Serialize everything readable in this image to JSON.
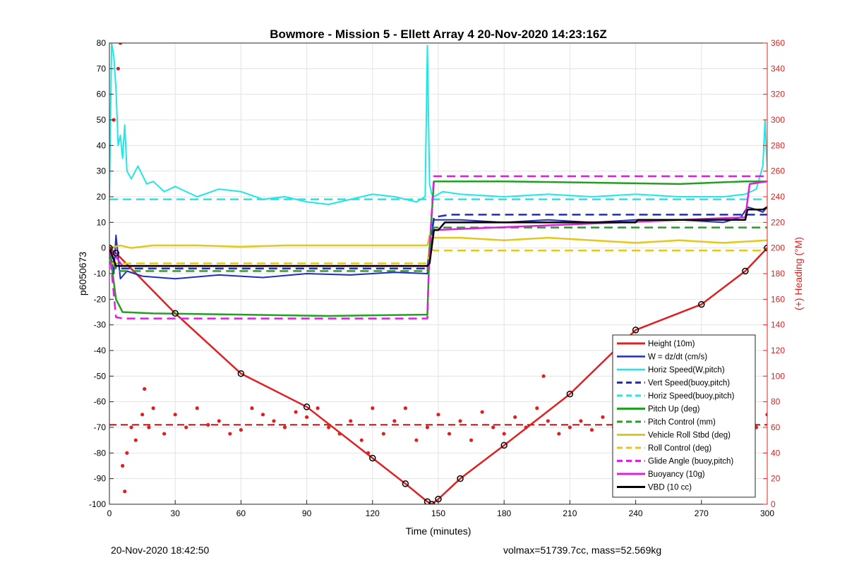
{
  "chart_data": {
    "type": "line",
    "title": "Bowmore - Mission 5 - Ellett Array 4 20-Nov-2020 14:23:16Z",
    "xlabel": "Time (minutes)",
    "ylabel": "p6050673",
    "y2label": "(+) Heading (°M)",
    "xlim": [
      0,
      300
    ],
    "ylim": [
      -100,
      80
    ],
    "y2lim": [
      0,
      360
    ],
    "xticks": [
      0,
      30,
      60,
      90,
      120,
      150,
      180,
      210,
      240,
      270,
      300
    ],
    "yticks": [
      -100,
      -90,
      -80,
      -70,
      -60,
      -50,
      -40,
      -30,
      -20,
      -10,
      0,
      10,
      20,
      30,
      40,
      50,
      60,
      70,
      80
    ],
    "y2ticks": [
      0,
      20,
      40,
      60,
      80,
      100,
      120,
      140,
      160,
      180,
      200,
      220,
      240,
      260,
      280,
      300,
      320,
      340,
      360
    ],
    "grid": true,
    "legend_position": "bottom-right",
    "series": [
      {
        "name": "Height (10m)",
        "color": "#e02020",
        "style": "solid",
        "width": 2.5,
        "x": [
          0,
          3,
          30,
          60,
          90,
          120,
          135,
          145,
          147,
          150,
          160,
          180,
          210,
          240,
          270,
          290,
          300
        ],
        "y": [
          0,
          -2,
          -25.5,
          -49,
          -62,
          -82,
          -92,
          -99,
          -100,
          -98,
          -90,
          -77,
          -57,
          -32,
          -22,
          -9,
          0
        ]
      },
      {
        "name": "W = dz/dt (cm/s)",
        "color": "#1f2fbf",
        "style": "solid",
        "width": 2,
        "x": [
          0,
          2,
          3,
          5,
          8,
          15,
          30,
          50,
          70,
          90,
          110,
          130,
          145,
          146,
          148,
          160,
          180,
          200,
          220,
          240,
          260,
          280,
          288,
          291,
          295,
          298,
          300
        ],
        "y": [
          0,
          -10,
          5,
          -12,
          -9,
          -11,
          -12,
          -10.5,
          -11.5,
          -10,
          -10.5,
          -9.5,
          -10,
          0,
          11,
          11,
          10,
          11,
          10,
          11,
          11,
          10,
          12,
          16,
          15,
          14,
          16
        ]
      },
      {
        "name": "Horiz Speed(W,pitch)",
        "color": "#22e6e6",
        "style": "solid",
        "width": 2,
        "x": [
          0,
          1,
          2,
          3,
          4,
          5,
          6,
          7,
          8,
          10,
          13,
          17,
          20,
          25,
          30,
          40,
          50,
          60,
          70,
          80,
          90,
          100,
          110,
          120,
          130,
          140,
          144,
          145,
          146,
          147,
          148,
          152,
          160,
          180,
          200,
          220,
          240,
          260,
          280,
          290,
          295,
          298,
          299,
          300
        ],
        "y": [
          20,
          80,
          75,
          62,
          40,
          44,
          35,
          48,
          30,
          27,
          32,
          25,
          26,
          22,
          24,
          20,
          23,
          22,
          19,
          20,
          18,
          17,
          19,
          21,
          20,
          18,
          20,
          79,
          25,
          21,
          20,
          22,
          21,
          20,
          21,
          20,
          21,
          20,
          20,
          21,
          23,
          32,
          50,
          30
        ]
      },
      {
        "name": "Vert Speed(buoy,pitch)",
        "color": "#1f2fbf",
        "style": "dashed",
        "width": 2.5,
        "x": [
          0,
          3,
          6,
          145,
          146,
          148,
          155,
          300
        ],
        "y": [
          0,
          -8,
          -8,
          -8,
          0,
          12,
          13,
          13
        ]
      },
      {
        "name": "Horiz Speed(buoy,pitch)",
        "color": "#22e6e6",
        "style": "dashed",
        "width": 2.5,
        "x": [
          0,
          6,
          145,
          146,
          148,
          300
        ],
        "y": [
          19,
          19,
          19,
          19,
          19,
          19
        ]
      },
      {
        "name": "Pitch Up (deg)",
        "color": "#22a022",
        "style": "solid",
        "width": 2.5,
        "x": [
          0,
          3,
          6,
          20,
          60,
          100,
          145,
          146,
          148,
          180,
          220,
          260,
          290,
          300
        ],
        "y": [
          0,
          -20,
          -25,
          -25.5,
          -26,
          -26.5,
          -26,
          0,
          26,
          26,
          25.5,
          25,
          26,
          26
        ]
      },
      {
        "name": "Pitch Control (mm)",
        "color": "#22a022",
        "style": "dashed",
        "width": 2.5,
        "x": [
          0,
          3,
          6,
          145,
          146,
          148,
          300
        ],
        "y": [
          0,
          -9,
          -9,
          -9,
          0,
          8,
          8
        ]
      },
      {
        "name": "Vehicle Roll Stbd (deg)",
        "color": "#e2c81a",
        "style": "solid",
        "width": 2.5,
        "x": [
          0,
          5,
          10,
          20,
          40,
          60,
          80,
          100,
          120,
          145,
          146,
          148,
          160,
          180,
          200,
          220,
          240,
          260,
          280,
          300
        ],
        "y": [
          0,
          1,
          0,
          1,
          1,
          0.5,
          1,
          1,
          1,
          1,
          5,
          4,
          4,
          3,
          4,
          3,
          2,
          3,
          2,
          3
        ]
      },
      {
        "name": "Roll Control (deg)",
        "color": "#e2c81a",
        "style": "dashed",
        "width": 2.5,
        "x": [
          0,
          6,
          145,
          146,
          148,
          300
        ],
        "y": [
          -6,
          -6,
          -6,
          0,
          -1,
          -1
        ]
      },
      {
        "name": "Glide Angle (buoy,pitch)",
        "color": "#e020e0",
        "style": "dashed",
        "width": 2.5,
        "x": [
          0,
          3,
          6,
          145,
          146,
          148,
          300
        ],
        "y": [
          0,
          -27,
          -27.5,
          -27.5,
          0,
          28,
          28
        ]
      },
      {
        "name": "Buoyancy (10g)",
        "color": "#e020e0",
        "style": "solid",
        "width": 2.5,
        "x": [
          0,
          6,
          145,
          146,
          148,
          290,
          292,
          300
        ],
        "y": [
          0,
          -7,
          -7,
          -6,
          7,
          12,
          25,
          26
        ]
      },
      {
        "name": "VBD (10 cc)",
        "color": "#000000",
        "style": "solid",
        "width": 2.5,
        "x": [
          0,
          3,
          145,
          146,
          148,
          150,
          152,
          153,
          240,
          241,
          290,
          291,
          298,
          300
        ],
        "y": [
          0,
          -7,
          -7,
          -6,
          7,
          7,
          9,
          10,
          10,
          11,
          11,
          15,
          15,
          16
        ]
      }
    ],
    "heading": {
      "name": "Heading (°M)",
      "axis": "right",
      "color": "#e02020",
      "x": [
        0,
        2,
        4,
        5,
        6,
        7,
        8,
        10,
        12,
        15,
        16,
        18,
        20,
        25,
        30,
        35,
        40,
        45,
        50,
        55,
        60,
        65,
        70,
        75,
        80,
        85,
        90,
        95,
        100,
        105,
        110,
        115,
        118,
        120,
        125,
        130,
        135,
        140,
        145,
        150,
        155,
        160,
        165,
        170,
        175,
        180,
        185,
        190,
        195,
        198,
        200,
        205,
        210,
        215,
        220,
        225,
        230,
        235,
        240,
        245,
        250,
        255,
        260,
        265,
        270,
        275,
        280,
        285,
        290,
        295,
        300
      ],
      "y": [
        200,
        300,
        340,
        360,
        30,
        10,
        40,
        60,
        50,
        70,
        90,
        60,
        75,
        55,
        70,
        60,
        75,
        62,
        65,
        55,
        58,
        75,
        70,
        65,
        60,
        72,
        68,
        75,
        60,
        55,
        65,
        50,
        40,
        75,
        55,
        65,
        75,
        50,
        60,
        70,
        55,
        65,
        50,
        72,
        60,
        55,
        68,
        60,
        75,
        100,
        65,
        55,
        60,
        65,
        58,
        68,
        60,
        65,
        55,
        62,
        58,
        70,
        60,
        65,
        55,
        62,
        68,
        50,
        75,
        60,
        70
      ]
    },
    "heading_mean": 62
  },
  "footer": {
    "timestamp": "20-Nov-2020 18:42:50",
    "stats": "volmax=51739.7cc, mass=52.569kg"
  }
}
